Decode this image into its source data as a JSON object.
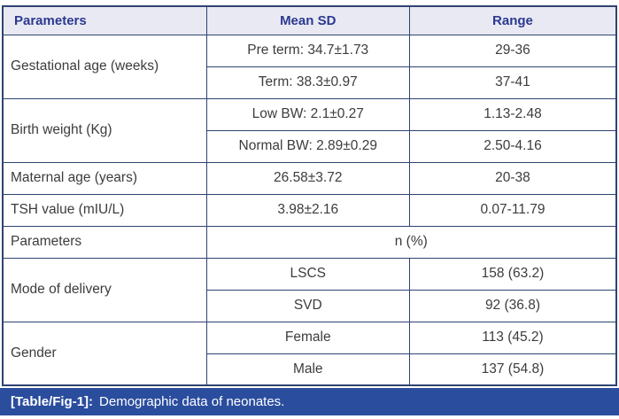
{
  "table": {
    "header": {
      "col1": "Parameters",
      "col2": "Mean SD",
      "col3": "Range"
    },
    "body": {
      "gestational": {
        "label": "Gestational age (weeks)",
        "preterm": {
          "mean": "Pre term: 34.7±1.73",
          "range": "29-36"
        },
        "term": {
          "mean": "Term: 38.3±0.97",
          "range": "37-41"
        }
      },
      "birth_weight": {
        "label": "Birth weight (Kg)",
        "low": {
          "mean": "Low BW: 2.1±0.27",
          "range": "1.13-2.48"
        },
        "normal": {
          "mean": "Normal BW: 2.89±0.29",
          "range": "2.50-4.16"
        }
      },
      "maternal_age": {
        "label": "Maternal age (years)",
        "mean": "26.58±3.72",
        "range": "20-38"
      },
      "tsh": {
        "label": "TSH value (mIU/L)",
        "mean": "3.98±2.16",
        "range": "0.07-11.79"
      },
      "subheader": {
        "label": "Parameters",
        "value": "n (%)"
      },
      "delivery": {
        "label": "Mode of delivery",
        "lscs": {
          "category": "LSCS",
          "value": "158 (63.2)"
        },
        "svd": {
          "category": "SVD",
          "value": "92 (36.8)"
        }
      },
      "gender": {
        "label": "Gender",
        "female": {
          "category": "Female",
          "value": "113 (45.2)"
        },
        "male": {
          "category": "Male",
          "value": "137 (54.8)"
        }
      }
    }
  },
  "caption": {
    "tag": "[Table/Fig-1]:",
    "text": "Demographic data of neonates."
  },
  "colors": {
    "header_bg": "#e9e9f3",
    "header_text": "#2b3990",
    "border": "#2e4372",
    "body_text": "#3c3c3c",
    "caption_bg": "#2b4d9e",
    "caption_text": "#ffffff"
  }
}
